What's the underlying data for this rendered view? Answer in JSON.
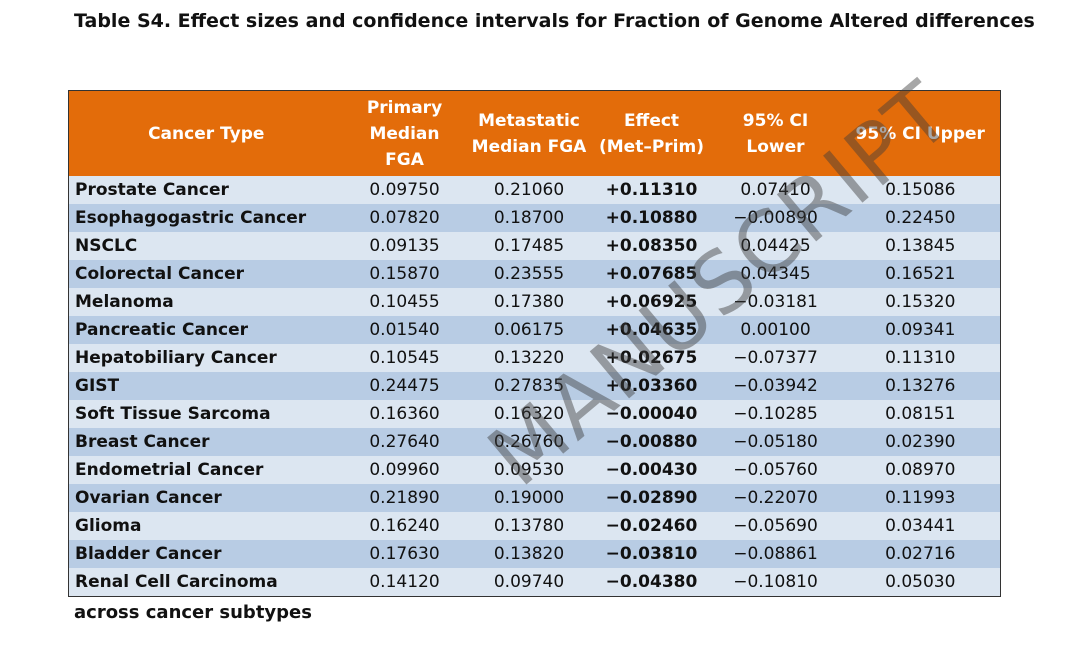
{
  "title": "Table S4. Effect sizes and confidence intervals for Fraction of Genome Altered differences",
  "table": {
    "header": [
      "Cancer Type",
      "Primary Median FGA",
      "Metastatic Median FGA",
      "Effect (Met–Prim)",
      "95% CI Lower",
      "95% CI Upper"
    ],
    "rows": [
      [
        "Prostate Cancer",
        "0.09750",
        "0.21060",
        "+0.11310",
        "0.07410",
        "0.15086"
      ],
      [
        "Esophagogastric Cancer",
        "0.07820",
        "0.18700",
        "+0.10880",
        "−0.00890",
        "0.22450"
      ],
      [
        "NSCLC",
        "0.09135",
        "0.17485",
        "+0.08350",
        "0.04425",
        "0.13845"
      ],
      [
        "Colorectal Cancer",
        "0.15870",
        "0.23555",
        "+0.07685",
        "0.04345",
        "0.16521"
      ],
      [
        "Melanoma",
        "0.10455",
        "0.17380",
        "+0.06925",
        "−0.03181",
        "0.15320"
      ],
      [
        "Pancreatic Cancer",
        "0.01540",
        "0.06175",
        "+0.04635",
        "0.00100",
        "0.09341"
      ],
      [
        "Hepatobiliary Cancer",
        "0.10545",
        "0.13220",
        "+0.02675",
        "−0.07377",
        "0.11310"
      ],
      [
        "GIST",
        "0.24475",
        "0.27835",
        "+0.03360",
        "−0.03942",
        "0.13276"
      ],
      [
        "Soft Tissue Sarcoma",
        "0.16360",
        "0.16320",
        "−0.00040",
        "−0.10285",
        "0.08151"
      ],
      [
        "Breast Cancer",
        "0.27640",
        "0.26760",
        "−0.00880",
        "−0.05180",
        "0.02390"
      ],
      [
        "Endometrial Cancer",
        "0.09960",
        "0.09530",
        "−0.00430",
        "−0.05760",
        "0.08970"
      ],
      [
        "Ovarian Cancer",
        "0.21890",
        "0.19000",
        "−0.02890",
        "−0.22070",
        "0.11993"
      ],
      [
        "Glioma",
        "0.16240",
        "0.13780",
        "−0.02460",
        "−0.05690",
        "0.03441"
      ],
      [
        "Bladder Cancer",
        "0.17630",
        "0.13820",
        "−0.03810",
        "−0.08861",
        "0.02716"
      ],
      [
        "Renal Cell Carcinoma",
        "0.14120",
        "0.09740",
        "−0.04380",
        "−0.10810",
        "0.05030"
      ]
    ]
  },
  "caption_end": "across cancer subtypes",
  "watermark": "MANUSCRIPT"
}
